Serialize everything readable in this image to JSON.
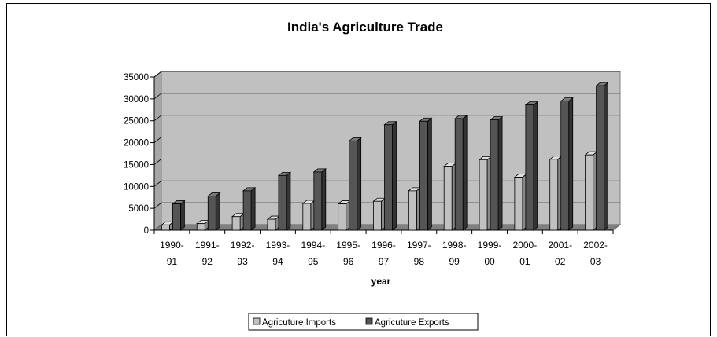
{
  "chart_data": {
    "type": "bar",
    "title": "India's Agriculture Trade",
    "xlabel": "year",
    "ylabel": "",
    "ylim": [
      0,
      35000
    ],
    "yticks": [
      0,
      5000,
      10000,
      15000,
      20000,
      25000,
      30000,
      35000
    ],
    "grid": true,
    "legend_position": "bottom",
    "categories": [
      "1990-91",
      "1991-92",
      "1992-93",
      "1993-94",
      "1994-95",
      "1995-96",
      "1996-97",
      "1997-98",
      "1998-99",
      "1999-00",
      "2000-01",
      "2001-02",
      "2002-03"
    ],
    "category_lines": [
      [
        "1990-",
        "91"
      ],
      [
        "1991-",
        "92"
      ],
      [
        "1992-",
        "93"
      ],
      [
        "1993-",
        "94"
      ],
      [
        "1994-",
        "95"
      ],
      [
        "1995-",
        "96"
      ],
      [
        "1996-",
        "97"
      ],
      [
        "1997-",
        "98"
      ],
      [
        "1998-",
        "99"
      ],
      [
        "1999-",
        "00"
      ],
      [
        "2000-",
        "01"
      ],
      [
        "2001-",
        "02"
      ],
      [
        "2002-",
        "03"
      ]
    ],
    "series": [
      {
        "name": "Agricuture Imports",
        "color": "#c0c0c0",
        "values": [
          1200,
          1500,
          3100,
          2500,
          6100,
          6000,
          6600,
          9000,
          14600,
          16100,
          12100,
          16200,
          17200
        ]
      },
      {
        "name": "Agricuture Exports",
        "color": "#555555",
        "values": [
          6000,
          7800,
          9000,
          12500,
          13300,
          20400,
          24100,
          24900,
          25500,
          25200,
          28600,
          29500,
          33000
        ]
      }
    ]
  }
}
